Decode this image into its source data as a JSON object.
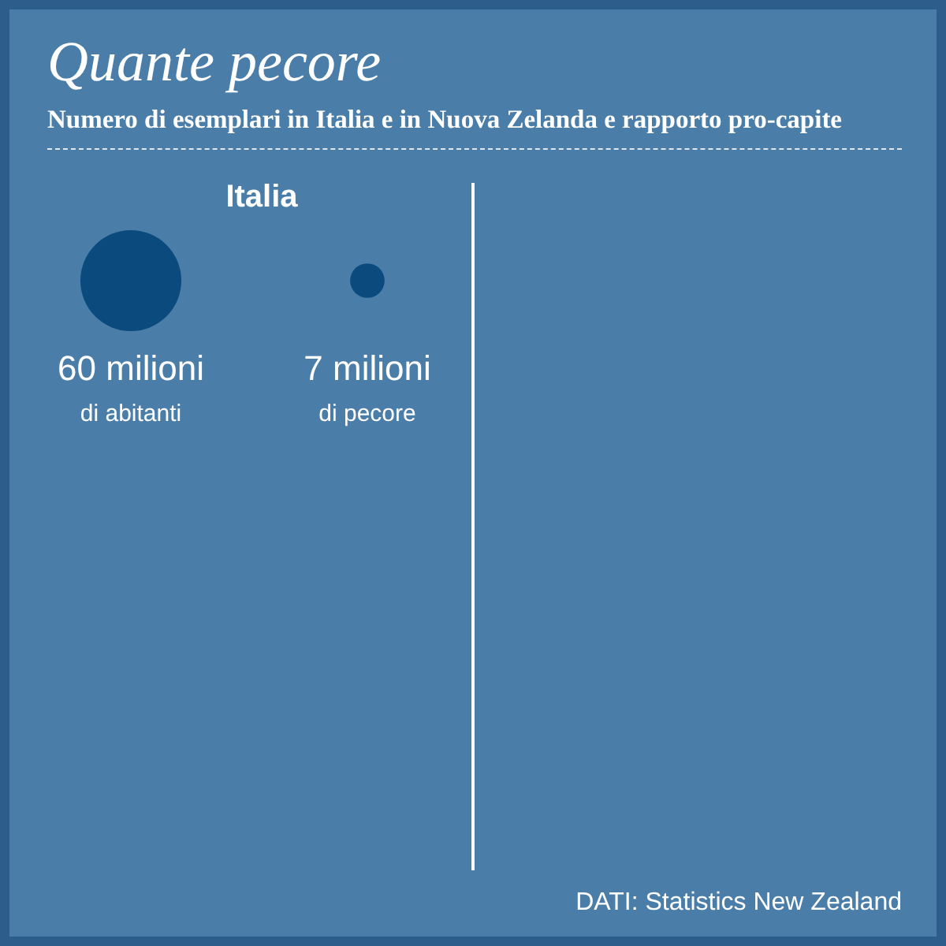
{
  "chart_data": {
    "type": "other",
    "title": "Quante pecore",
    "subtitle": "Numero di esemplari in Italia e in Nuova Zelanda e rapporto pro-capite",
    "categories": [
      "di abitanti",
      "di pecore"
    ],
    "values": [
      60,
      7
    ],
    "value_labels": [
      "60 milioni",
      "7 milioni"
    ],
    "colors": [
      "#0b4a7d",
      "#0b4a7d"
    ],
    "annotations": [
      "Italia",
      "DATI: Statistics New Zealand"
    ]
  }
}
